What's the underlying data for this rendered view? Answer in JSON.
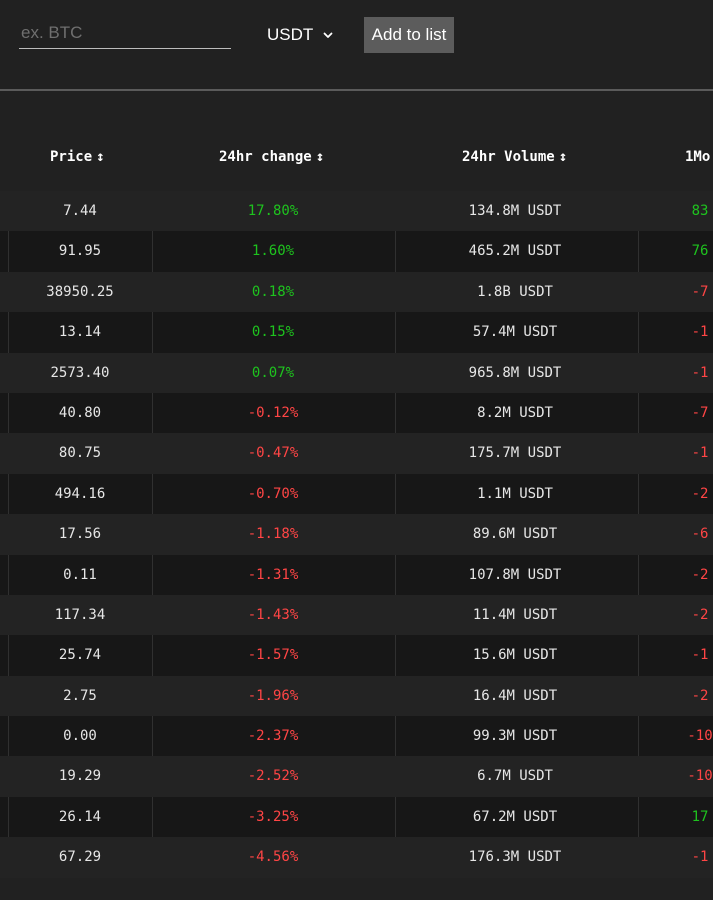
{
  "search": {
    "placeholder": "ex. BTC"
  },
  "currency": {
    "selected": "USDT"
  },
  "add_button": {
    "label": "Add to list"
  },
  "columns": [
    {
      "label": "Price"
    },
    {
      "label": "24hr change"
    },
    {
      "label": "24hr Volume"
    },
    {
      "label": "1Mo."
    }
  ],
  "sort_glyph": "↕",
  "rows": [
    {
      "price": "7.44",
      "change": "17.80%",
      "volume": "134.8M USDT",
      "month": "83",
      "change_dir": "pos",
      "month_dir": "pos"
    },
    {
      "price": "91.95",
      "change": "1.60%",
      "volume": "465.2M USDT",
      "month": "76",
      "change_dir": "pos",
      "month_dir": "pos"
    },
    {
      "price": "38950.25",
      "change": "0.18%",
      "volume": "1.8B USDT",
      "month": "-7",
      "change_dir": "pos",
      "month_dir": "neg"
    },
    {
      "price": "13.14",
      "change": "0.15%",
      "volume": "57.4M USDT",
      "month": "-1",
      "change_dir": "pos",
      "month_dir": "neg"
    },
    {
      "price": "2573.40",
      "change": "0.07%",
      "volume": "965.8M USDT",
      "month": "-1",
      "change_dir": "pos",
      "month_dir": "neg"
    },
    {
      "price": "40.80",
      "change": "-0.12%",
      "volume": "8.2M USDT",
      "month": "-7",
      "change_dir": "neg",
      "month_dir": "neg"
    },
    {
      "price": "80.75",
      "change": "-0.47%",
      "volume": "175.7M USDT",
      "month": "-1",
      "change_dir": "neg",
      "month_dir": "neg"
    },
    {
      "price": "494.16",
      "change": "-0.70%",
      "volume": "1.1M USDT",
      "month": "-2",
      "change_dir": "neg",
      "month_dir": "neg"
    },
    {
      "price": "17.56",
      "change": "-1.18%",
      "volume": "89.6M USDT",
      "month": "-6",
      "change_dir": "neg",
      "month_dir": "neg"
    },
    {
      "price": "0.11",
      "change": "-1.31%",
      "volume": "107.8M USDT",
      "month": "-2",
      "change_dir": "neg",
      "month_dir": "neg"
    },
    {
      "price": "117.34",
      "change": "-1.43%",
      "volume": "11.4M USDT",
      "month": "-2",
      "change_dir": "neg",
      "month_dir": "neg"
    },
    {
      "price": "25.74",
      "change": "-1.57%",
      "volume": "15.6M USDT",
      "month": "-1",
      "change_dir": "neg",
      "month_dir": "neg"
    },
    {
      "price": "2.75",
      "change": "-1.96%",
      "volume": "16.4M USDT",
      "month": "-2",
      "change_dir": "neg",
      "month_dir": "neg"
    },
    {
      "price": "0.00",
      "change": "-2.37%",
      "volume": "99.3M USDT",
      "month": "-10",
      "change_dir": "neg",
      "month_dir": "neg"
    },
    {
      "price": "19.29",
      "change": "-2.52%",
      "volume": "6.7M USDT",
      "month": "-10",
      "change_dir": "neg",
      "month_dir": "neg"
    },
    {
      "price": "26.14",
      "change": "-3.25%",
      "volume": "67.2M USDT",
      "month": "17",
      "change_dir": "neg",
      "month_dir": "pos"
    },
    {
      "price": "67.29",
      "change": "-4.56%",
      "volume": "176.3M USDT",
      "month": "-1",
      "change_dir": "neg",
      "month_dir": "neg"
    }
  ],
  "colors": {
    "positive": "#1ec31e",
    "negative": "#ff4545",
    "background": "#212121"
  }
}
